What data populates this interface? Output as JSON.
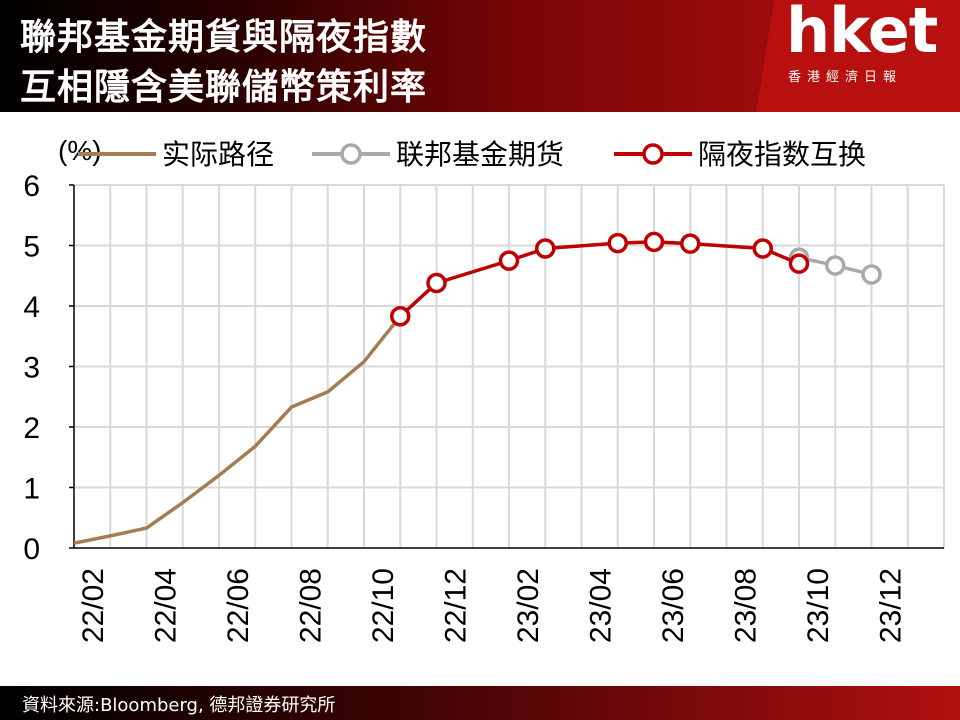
{
  "header": {
    "title_line1": "聯邦基金期貨與隔夜指數",
    "title_line2": "互相隱含美聯儲幣策利率",
    "logo_text": "hket",
    "logo_subtext": "香港經濟日報"
  },
  "footer": {
    "source": "資料來源:Bloomberg, 德邦證券研究所"
  },
  "colors": {
    "actual": "#a67c52",
    "futures": "#a9a9a9",
    "ois": "#c00000",
    "grid": "#d9d9d9"
  },
  "chart_data": {
    "type": "line",
    "ylabel": "(%)",
    "ylim": [
      0,
      6
    ],
    "yticks": [
      "0",
      "1",
      "2",
      "3",
      "4",
      "5",
      "6"
    ],
    "xlim": [
      0,
      24
    ],
    "xticks": [
      "22/02",
      "22/04",
      "22/06",
      "22/08",
      "22/10",
      "22/12",
      "23/02",
      "23/04",
      "23/06",
      "23/08",
      "23/10",
      "23/12"
    ],
    "grid": true,
    "legend_position": "top",
    "series": [
      {
        "name": "实际路径",
        "color": "#a67c52",
        "marker": "none",
        "x": [
          0,
          1,
          2,
          3,
          4,
          5,
          6,
          7,
          8,
          9
        ],
        "y": [
          0.08,
          0.2,
          0.33,
          0.75,
          1.2,
          1.68,
          2.33,
          2.58,
          3.08,
          3.83
        ]
      },
      {
        "name": "联邦基金期货",
        "color": "#a9a9a9",
        "marker": "circle",
        "x": [
          20,
          21,
          22
        ],
        "y": [
          4.8,
          4.67,
          4.52
        ]
      },
      {
        "name": "隔夜指数互换",
        "color": "#c00000",
        "marker": "circle",
        "x": [
          9,
          10,
          12,
          13,
          15,
          16,
          17,
          19,
          20
        ],
        "y": [
          3.83,
          4.38,
          4.75,
          4.95,
          5.04,
          5.06,
          5.03,
          4.95,
          4.7
        ]
      }
    ]
  }
}
